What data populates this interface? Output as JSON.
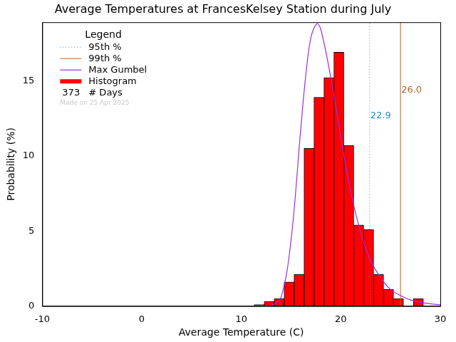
{
  "chart_data": {
    "type": "histogram",
    "title": "Average Temperatures at FrancesKelsey Station during July",
    "x_label": "Average Temperature (C)",
    "y_label": "Probability (%)",
    "bins": [
      11.3,
      12.3,
      13.3,
      14.3,
      15.3,
      16.3,
      17.3,
      18.3,
      19.3,
      20.3,
      21.3,
      22.3,
      23.3,
      24.3,
      25.3,
      26.3,
      27.3,
      28.3
    ],
    "series": [
      {
        "name": "Max Gumbel",
        "type": "line",
        "color": "#9a2ee0",
        "x": [
          12,
          13,
          14,
          15,
          16,
          16.5,
          17,
          17.6,
          18,
          19,
          20,
          21,
          22,
          23,
          24,
          25,
          26,
          27,
          28,
          29,
          30
        ],
        "values": [
          0,
          0.02,
          0.6,
          4.4,
          12.0,
          15.5,
          17.9,
          18.8,
          18.4,
          15.2,
          11.2,
          7.6,
          4.9,
          3.0,
          1.9,
          1.1,
          0.7,
          0.4,
          0.25,
          0.15,
          0.09
        ]
      },
      {
        "name": "Histogram",
        "type": "bar",
        "color": "#ff0000",
        "values": [
          0.1,
          0.3,
          0.5,
          1.6,
          2.1,
          10.5,
          13.9,
          15.2,
          16.9,
          10.7,
          5.4,
          5.1,
          2.1,
          1.1,
          0.5,
          0,
          0.5
        ]
      }
    ],
    "percentiles": [
      {
        "name": "95th %",
        "value": 22.9,
        "label": "22.9",
        "color": "#1e8cc8",
        "line_style": "dotted"
      },
      {
        "name": "99th %",
        "value": 26.0,
        "label": "26.0",
        "color": "#b0642a",
        "line_style": "solid"
      }
    ],
    "legend_title": "Legend",
    "days": {
      "value": 373,
      "label": "# Days"
    },
    "annotations": [
      "Made on 25 Apr 2025"
    ],
    "legend": "top-left",
    "xlim": [
      -10,
      30
    ],
    "xticks": [
      -10,
      0,
      10,
      20,
      30
    ],
    "ylim": [
      0,
      18.9
    ],
    "yticks": [
      0,
      5,
      10,
      15
    ],
    "grid": false
  }
}
